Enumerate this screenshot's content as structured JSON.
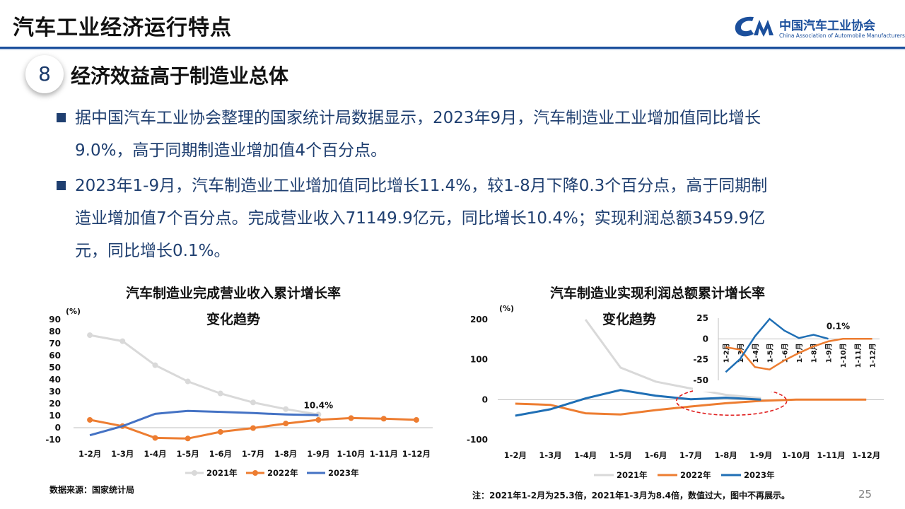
{
  "header": {
    "title": "汽车工业经济运行特点",
    "logo_cn": "中国汽车工业协会",
    "logo_en": "China Association of Automobile Manufacturers"
  },
  "section": {
    "number": "8",
    "title": "经济效益高于制造业总体"
  },
  "bullets": [
    {
      "lines": [
        "据中国汽车工业协会整理的国家统计局数据显示，2023年9月，汽车制造业工业增加值同比增长",
        "9.0%，高于同期制造业增加值4个百分点。"
      ]
    },
    {
      "lines": [
        "2023年1-9月，汽车制造业工业增加值同比增长11.4%，较1-8月下降0.3个百分点，高于同期制",
        "造业增加值7个百分点。完成营业收入71149.9亿元，同比增长10.4%；实现利润总额3459.9亿",
        "元，同比增长0.1%。"
      ]
    }
  ],
  "chart_data": [
    {
      "type": "line",
      "title_line1": "汽车制造业完成营业收入累计增长率",
      "title_line2": "变化趋势",
      "ylabel": "(%)",
      "ylim": [
        -10,
        90
      ],
      "yticks": [
        -10,
        0,
        10,
        20,
        30,
        40,
        50,
        60,
        70,
        80,
        90
      ],
      "categories": [
        "1-2月",
        "1-3月",
        "1-4月",
        "1-5月",
        "1-6月",
        "1-7月",
        "1-8月",
        "1-9月",
        "1-10月",
        "1-11月",
        "1-12月"
      ],
      "series": [
        {
          "name": "2021年",
          "color": "#d9d9d9",
          "marker": "circle",
          "values": [
            77,
            72,
            52,
            38.5,
            28.5,
            21,
            15.5,
            11,
            null,
            null,
            null
          ]
        },
        {
          "name": "2022年",
          "color": "#ed7d31",
          "marker": "circle",
          "values": [
            6.5,
            1.3,
            -8.5,
            -9,
            -3.5,
            -0.3,
            3.5,
            6.5,
            8,
            7.5,
            6.5
          ]
        },
        {
          "name": "2023年",
          "color": "#4472c4",
          "marker": "none",
          "values": [
            -6.3,
            1.3,
            11.5,
            14,
            13.2,
            12.2,
            11,
            10.4,
            null,
            null,
            null
          ]
        }
      ],
      "annotation": "10.4%",
      "legend": "bottom"
    },
    {
      "type": "line",
      "title_line1": "汽车制造业实现利润总额累计增长率",
      "title_line2": "变化趋势",
      "ylabel": "(%)",
      "ylim": [
        -100,
        200
      ],
      "yticks": [
        -100,
        0,
        100,
        200
      ],
      "categories": [
        "1-2月",
        "1-3月",
        "1-4月",
        "1-5月",
        "1-6月",
        "1-7月",
        "1-8月",
        "1-9月",
        "1-10月",
        "1-11月",
        "1-12月"
      ],
      "series": [
        {
          "name": "2021年",
          "color": "#d9d9d9",
          "values": [
            null,
            null,
            200,
            80,
            45,
            28,
            12,
            4,
            null,
            null,
            null
          ]
        },
        {
          "name": "2022年",
          "color": "#ed7d31",
          "values": [
            -10,
            -13,
            -34,
            -37,
            -26,
            -17,
            -9,
            -3,
            0,
            0,
            0
          ]
        },
        {
          "name": "2023年",
          "color": "#1f6fb5",
          "values": [
            -40,
            -24,
            3,
            24,
            10,
            1,
            5,
            0.1,
            null,
            null,
            null
          ]
        }
      ],
      "annotation": "0.1%",
      "legend": "bottom",
      "inset": {
        "ylim": [
          -50,
          25
        ],
        "yticks": [
          25,
          0,
          -25,
          -50
        ],
        "categories": [
          "1-2月",
          "1-3月",
          "1-4月",
          "1-5月",
          "1-6月",
          "1-7月",
          "1-8月",
          "1-9月",
          "1-10月",
          "1-11月",
          "1-12月"
        ],
        "series": [
          {
            "name": "2022年",
            "color": "#ed7d31",
            "values": [
              -10,
              -13,
              -34,
              -37,
              -26,
              -17,
              -9,
              -3,
              0,
              0,
              0
            ]
          },
          {
            "name": "2023年",
            "color": "#1f6fb5",
            "values": [
              -40,
              -24,
              3,
              24,
              10,
              1,
              5,
              0.1,
              null,
              null,
              null
            ]
          }
        ],
        "annotation": "0.1%"
      }
    }
  ],
  "footer": {
    "source": "数据来源：国家统计局",
    "note": "注：2021年1-2月为25.3倍，2021年1-3月为8.4倍，数值过大，图中不再展示。",
    "page": "25"
  }
}
